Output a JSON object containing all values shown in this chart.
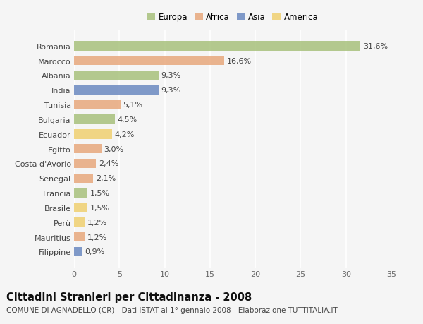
{
  "countries": [
    "Romania",
    "Marocco",
    "Albania",
    "India",
    "Tunisia",
    "Bulgaria",
    "Ecuador",
    "Egitto",
    "Costa d'Avorio",
    "Senegal",
    "Francia",
    "Brasile",
    "Perù",
    "Mauritius",
    "Filippine"
  ],
  "values": [
    31.6,
    16.6,
    9.3,
    9.3,
    5.1,
    4.5,
    4.2,
    3.0,
    2.4,
    2.1,
    1.5,
    1.5,
    1.2,
    1.2,
    0.9
  ],
  "labels": [
    "31,6%",
    "16,6%",
    "9,3%",
    "9,3%",
    "5,1%",
    "4,5%",
    "4,2%",
    "3,0%",
    "2,4%",
    "2,1%",
    "1,5%",
    "1,5%",
    "1,2%",
    "1,2%",
    "0,9%"
  ],
  "continents": [
    "Europa",
    "Africa",
    "Europa",
    "Asia",
    "Africa",
    "Europa",
    "America",
    "Africa",
    "Africa",
    "Africa",
    "Europa",
    "America",
    "America",
    "Africa",
    "Asia"
  ],
  "continent_colors": {
    "Europa": "#a8c17c",
    "Africa": "#e8a87c",
    "Asia": "#6b89c0",
    "America": "#f0d070"
  },
  "legend_order": [
    "Europa",
    "Africa",
    "Asia",
    "America"
  ],
  "title": "Cittadini Stranieri per Cittadinanza - 2008",
  "subtitle": "COMUNE DI AGNADELLO (CR) - Dati ISTAT al 1° gennaio 2008 - Elaborazione TUTTITALIA.IT",
  "xlim": [
    0,
    35
  ],
  "xticks": [
    0,
    5,
    10,
    15,
    20,
    25,
    30,
    35
  ],
  "background_color": "#f5f5f5",
  "bar_height": 0.65,
  "grid_color": "#ffffff",
  "label_fontsize": 8,
  "ytick_fontsize": 8,
  "xtick_fontsize": 8,
  "title_fontsize": 10.5,
  "subtitle_fontsize": 7.5,
  "legend_fontsize": 8.5
}
